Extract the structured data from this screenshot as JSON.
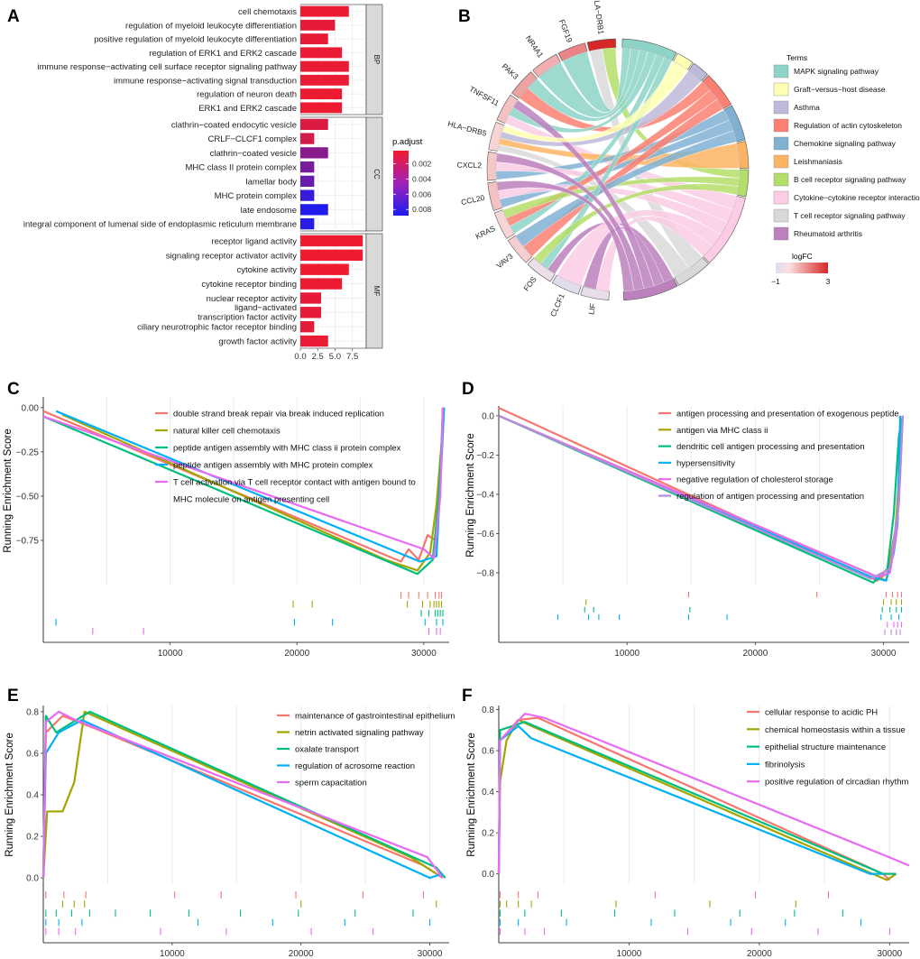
{
  "figure": {
    "panel_letters": [
      "A",
      "B",
      "C",
      "D",
      "E",
      "F"
    ],
    "colors": {
      "bar_low_p": "#f21b2d",
      "bar_high_p": "#1c1cf2",
      "strip_bg": "#d9d9d9",
      "grid": "#ebebeb",
      "gsea_red": "#f8766d",
      "gsea_olive": "#a3a500",
      "gsea_green": "#00bf7d",
      "gsea_blue": "#00b0f6",
      "gsea_pink": "#e76bf3"
    }
  },
  "chart_data": [
    {
      "panel": "A",
      "type": "bar",
      "orientation": "horizontal",
      "xlim": [
        0,
        9.5
      ],
      "xticks": [
        "0.0",
        "2.5",
        "5.0",
        "7.5"
      ],
      "xtick_values": [
        0,
        2.5,
        5,
        7.5
      ],
      "colorbar": {
        "title": "p.adjust",
        "ticks": [
          "0.002",
          "0.004",
          "0.006",
          "0.008"
        ],
        "tick_values": [
          0.002,
          0.004,
          0.006,
          0.008
        ],
        "range": [
          0.0003,
          0.0088
        ]
      },
      "facets": [
        {
          "strip": "BP",
          "categories": [
            "cell chemotaxis",
            "regulation of myeloid leukocyte differentiation",
            "positive regulation of myeloid leukocyte differentiation",
            "regulation of ERK1 and ERK2 cascade",
            "immune response−activating cell surface receptor signaling pathway",
            "immune response−activating signal transduction",
            "regulation of neuron death",
            "ERK1 and ERK2 cascade"
          ],
          "values": [
            7,
            5,
            4,
            6,
            7,
            7,
            6,
            6
          ],
          "p_adjust": [
            0.0005,
            0.0008,
            0.0007,
            0.0006,
            0.0006,
            0.0006,
            0.0005,
            0.0005
          ]
        },
        {
          "strip": "CC",
          "categories": [
            "clathrin−coated endocytic vesicle",
            "CRLF−CLCF1 complex",
            "clathrin−coated vesicle",
            "MHC class II protein complex",
            "lamellar body",
            "MHC protein complex",
            "late endosome",
            "integral component of lumenal side of endoplasmic reticulum membrane"
          ],
          "values": [
            4,
            2,
            4,
            2,
            2,
            2,
            4,
            2
          ],
          "p_adjust": [
            0.0012,
            0.0015,
            0.0045,
            0.0052,
            0.0058,
            0.0078,
            0.0086,
            0.0083
          ]
        },
        {
          "strip": "MF",
          "categories": [
            "receptor ligand activity",
            "signaling receptor activator activity",
            "cytokine activity",
            "cytokine receptor binding",
            "nuclear receptor activity",
            "ligand−activated transcription factor activity",
            "ciliary neurotrophic factor receptor binding",
            "growth factor activity"
          ],
          "values": [
            9,
            9,
            7,
            6,
            3,
            3,
            2,
            4
          ],
          "p_adjust": [
            0.0004,
            0.0004,
            0.0004,
            0.0005,
            0.0008,
            0.0008,
            0.0009,
            0.0006
          ]
        }
      ]
    },
    {
      "panel": "B",
      "type": "chord",
      "genes": [
        "LA−DRB1",
        "FGF19",
        "NR4A1",
        "PAK3",
        "TNFSF11",
        "HLA−DRB5",
        "CXCL2",
        "CCL20",
        "KRAS",
        "VAV3",
        "FOS",
        "CLCF1",
        "LIF"
      ],
      "logFC": [
        3,
        1.5,
        0.8,
        1.0,
        0.5,
        0.2,
        0.4,
        0.5,
        0.2,
        0.3,
        -0.5,
        -0.8,
        -0.6
      ],
      "terms_title": "Terms",
      "terms": [
        "MAPK signaling pathway",
        "Graft−versus−host disease",
        "Asthma",
        "Regulation of actin cytoskeleton",
        "Chemokine signaling pathway",
        "Leishmaniasis",
        "B cell receptor signaling pathway",
        "Cytokine−cytokine receptor interaction",
        "T cell receptor signaling pathway",
        "Rheumatoid arthritis"
      ],
      "term_colors": [
        "#8dd3c7",
        "#ffffb3",
        "#bebada",
        "#fb8072",
        "#80b1d3",
        "#fdb462",
        "#b3de69",
        "#fccde5",
        "#d9d9d9",
        "#bc80bd"
      ],
      "term_sizes": [
        6,
        2,
        2,
        4,
        4,
        3,
        3,
        8,
        4,
        6
      ],
      "logFC_legend": {
        "title": "logFC",
        "ticks": [
          "−1",
          "3"
        ],
        "range": [
          -1,
          3
        ]
      }
    },
    {
      "panel": "C",
      "type": "line",
      "ylabel": "Running Enrichment Score",
      "xlim": [
        0,
        32000
      ],
      "ylim": [
        -1.0,
        0.06
      ],
      "xticks": [
        "10000",
        "20000",
        "30000"
      ],
      "xtick_values": [
        10000,
        20000,
        30000
      ],
      "yticks": [
        "0.00",
        "−0.25",
        "−0.50",
        "−0.75"
      ],
      "ytick_values": [
        0,
        -0.25,
        -0.5,
        -0.75
      ],
      "series": [
        {
          "name": "double strand break repair via break induced replication",
          "color": "#f8766d",
          "x": [
            0,
            28200,
            28800,
            29600,
            30300,
            30900,
            31300,
            31500
          ],
          "y": [
            -0.02,
            -0.87,
            -0.8,
            -0.86,
            -0.72,
            -0.75,
            -0.4,
            0.0
          ],
          "hits": [
            28200,
            28800,
            29600,
            30300,
            30900,
            31200,
            31400
          ]
        },
        {
          "name": "natural killer cell chemotaxis",
          "color": "#a3a500",
          "x": [
            1500,
            27000,
            29500,
            30500,
            31000,
            31400,
            31500
          ],
          "y": [
            -0.04,
            -0.86,
            -0.92,
            -0.82,
            -0.55,
            -0.2,
            0.0
          ],
          "hits": [
            19700,
            21200,
            28700,
            29900,
            30500,
            30800,
            31000,
            31200,
            31400
          ]
        },
        {
          "name": "peptide antigen assembly with MHC class ii protein complex",
          "color": "#00bf7d",
          "x": [
            0,
            29500,
            30700,
            31200,
            31400,
            31600
          ],
          "y": [
            -0.05,
            -0.94,
            -0.86,
            -0.5,
            -0.2,
            0.0
          ],
          "hits": [
            29800,
            30400,
            30900,
            31100,
            31300,
            31500
          ]
        },
        {
          "name": "peptide antigen assembly with MHC protein complex",
          "color": "#00b0f6",
          "x": [
            1000,
            29700,
            31000,
            31400,
            31600
          ],
          "y": [
            -0.02,
            -0.87,
            -0.84,
            -0.3,
            0.0
          ],
          "hits": [
            1000,
            19800,
            22800,
            30100,
            31000,
            31500
          ]
        },
        {
          "name": "T cell activation via T cell receptor contact with antigen bound to MHC molecule on antigen presenting cell",
          "color": "#e76bf3",
          "x": [
            0,
            30000,
            30800,
            31300,
            31500
          ],
          "y": [
            -0.05,
            -0.8,
            -0.85,
            -0.5,
            0.0
          ],
          "hits": [
            3900,
            7900,
            30400,
            31000,
            31300
          ]
        }
      ]
    },
    {
      "panel": "D",
      "type": "line",
      "ylabel": "Running Enrichment Score",
      "xlim": [
        0,
        32000
      ],
      "ylim": [
        -0.86,
        0.05
      ],
      "xticks": [
        "10000",
        "20000",
        "30000"
      ],
      "xtick_values": [
        10000,
        20000,
        30000
      ],
      "yticks": [
        "0.0",
        "−0.2",
        "−0.4",
        "−0.6",
        "−0.8"
      ],
      "ytick_values": [
        0,
        -0.2,
        -0.4,
        -0.6,
        -0.8
      ],
      "series": [
        {
          "name": "antigen processing and presentation of exogenous peptide",
          "color": "#f8766d",
          "x": [
            0,
            29500,
            30300,
            31000,
            31300,
            31500
          ],
          "y": [
            0.04,
            -0.84,
            -0.8,
            -0.55,
            -0.2,
            0.0
          ],
          "hits": [
            14800,
            24800,
            30200,
            30700,
            31100,
            31400
          ]
        },
        {
          "name": "antigen via MHC class ii",
          "color": "#a3a500",
          "x": [
            0,
            28800,
            30200,
            30900,
            31300,
            31500
          ],
          "y": [
            0.0,
            -0.8,
            -0.84,
            -0.6,
            -0.25,
            0.0
          ],
          "hits": [
            6800,
            30000,
            30600,
            31000,
            31400
          ]
        },
        {
          "name": "dendritic cell antigen processing and presentation",
          "color": "#00bf7d",
          "x": [
            0,
            29200,
            30300,
            30800,
            31200,
            31500
          ],
          "y": [
            0.0,
            -0.85,
            -0.78,
            -0.5,
            -0.1,
            0.0
          ],
          "hits": [
            6700,
            7400,
            14900,
            29900,
            30500,
            31000,
            31400
          ]
        },
        {
          "name": "hypersensitivity",
          "color": "#00b0f6",
          "x": [
            0,
            29000,
            30200,
            30800,
            31100,
            31300
          ],
          "y": [
            0.0,
            -0.82,
            -0.84,
            -0.7,
            -0.55,
            0.0
          ],
          "hits": [
            4600,
            7000,
            7800,
            9400,
            14800,
            17800,
            29800,
            30600,
            31200
          ]
        },
        {
          "name": "negative regulation of cholesterol storage",
          "color": "#e76bf3",
          "x": [
            0,
            29500,
            30500,
            31000,
            31300,
            31500
          ],
          "y": [
            0.0,
            -0.82,
            -0.8,
            -0.6,
            -0.3,
            0.0
          ],
          "hits": [
            30300,
            30800,
            31100,
            31400
          ]
        },
        {
          "name": "regulation of antigen processing and presentation",
          "color": "#b58cd9",
          "x": [
            0,
            29000,
            30500,
            31200,
            31500
          ],
          "y": [
            0.0,
            -0.83,
            -0.78,
            -0.45,
            0.0
          ],
          "hits": [
            30100,
            30600,
            31000,
            31300
          ]
        }
      ]
    },
    {
      "panel": "E",
      "type": "line",
      "ylabel": "Running Enrichment Score",
      "xlim": [
        0,
        31500
      ],
      "ylim": [
        -0.03,
        0.83
      ],
      "xticks": [
        "10000",
        "20000",
        "30000"
      ],
      "xtick_values": [
        10000,
        20000,
        30000
      ],
      "yticks": [
        "0.0",
        "0.2",
        "0.4",
        "0.6",
        "0.8"
      ],
      "ytick_values": [
        0,
        0.2,
        0.4,
        0.6,
        0.8
      ],
      "series": [
        {
          "name": "maintenance of gastrointestinal epithelium",
          "color": "#f8766d",
          "x": [
            0,
            200,
            1500,
            4000,
            29500,
            31000
          ],
          "y": [
            0.0,
            0.7,
            0.78,
            0.72,
            0.06,
            0.0
          ],
          "hits": [
            200,
            1600,
            3300,
            10200,
            13800,
            19600,
            24800,
            29500
          ]
        },
        {
          "name": "netrin activated signaling pathway",
          "color": "#a3a500",
          "x": [
            0,
            300,
            1500,
            2400,
            3200,
            28500,
            30500
          ],
          "y": [
            0.0,
            0.32,
            0.32,
            0.46,
            0.8,
            0.1,
            0.02
          ],
          "hits": [
            1500,
            2400,
            3200,
            20000,
            30500
          ]
        },
        {
          "name": "oxalate transport",
          "color": "#00bf7d",
          "x": [
            0,
            200,
            1000,
            3600,
            30500,
            31200
          ],
          "y": [
            0.0,
            0.78,
            0.7,
            0.8,
            0.05,
            0.0
          ],
          "hits": [
            200,
            1000,
            2200,
            3600,
            5600,
            8300,
            11300,
            15300,
            19800,
            24200,
            28700
          ]
        },
        {
          "name": "regulation of acrosome reaction",
          "color": "#00b0f6",
          "x": [
            0,
            200,
            1200,
            3000,
            30000,
            31000
          ],
          "y": [
            0.0,
            0.6,
            0.7,
            0.76,
            0.0,
            0.02
          ],
          "hits": [
            200,
            1200,
            3000,
            12000,
            17800,
            23400,
            30000
          ]
        },
        {
          "name": "sperm capacitation",
          "color": "#e76bf3",
          "x": [
            0,
            200,
            1200,
            2500,
            29800,
            31000
          ],
          "y": [
            0.0,
            0.75,
            0.8,
            0.76,
            0.1,
            0.0
          ],
          "hits": [
            200,
            1200,
            2500,
            9100,
            14200,
            20800,
            25600
          ]
        }
      ]
    },
    {
      "panel": "F",
      "type": "line",
      "ylabel": "Running Enrichment Score",
      "xlim": [
        0,
        31500
      ],
      "ylim": [
        -0.05,
        0.82
      ],
      "xticks": [
        "10000",
        "20000",
        "30000"
      ],
      "xtick_values": [
        10000,
        20000,
        30000
      ],
      "yticks": [
        "0.0",
        "0.2",
        "0.4",
        "0.6",
        "0.8"
      ],
      "ytick_values": [
        0,
        0.2,
        0.4,
        0.6,
        0.8
      ],
      "series": [
        {
          "name": "cellular response to acidic PH",
          "color": "#f8766d",
          "x": [
            0,
            100,
            1500,
            3000,
            29500,
            30000
          ],
          "y": [
            0.0,
            0.65,
            0.75,
            0.76,
            0.0,
            -0.03
          ],
          "hits": [
            100,
            1500,
            3000,
            12000,
            19700,
            25300
          ]
        },
        {
          "name": "chemical homeostasis within a tissue",
          "color": "#a3a500",
          "x": [
            0,
            100,
            600,
            1500,
            2500,
            29800,
            30500
          ],
          "y": [
            0.0,
            0.45,
            0.65,
            0.75,
            0.72,
            -0.03,
            0.0
          ],
          "hits": [
            100,
            600,
            1500,
            2500,
            9000,
            16200,
            22800
          ]
        },
        {
          "name": "epithelial structure maintenance",
          "color": "#00bf7d",
          "x": [
            0,
            100,
            2000,
            29500,
            30500
          ],
          "y": [
            0.0,
            0.7,
            0.74,
            0.0,
            0.0
          ],
          "hits": [
            100,
            2000,
            4800,
            8900,
            13500,
            18500,
            22700,
            26400
          ]
        },
        {
          "name": "fibrinolysis",
          "color": "#00b0f6",
          "x": [
            0,
            100,
            1500,
            2500,
            28500,
            29500
          ],
          "y": [
            0.0,
            0.65,
            0.72,
            0.66,
            0.0,
            0.0
          ],
          "hits": [
            100,
            1500,
            5200,
            11700,
            17800,
            22000,
            27800
          ]
        },
        {
          "name": "positive regulation of circadian rhythm",
          "color": "#e76bf3",
          "x": [
            0,
            100,
            2000,
            3500,
            30000,
            31500
          ],
          "y": [
            0.0,
            0.65,
            0.78,
            0.76,
            0.08,
            0.04
          ],
          "hits": [
            100,
            2000,
            3500,
            14500,
            19400,
            24500,
            30000
          ]
        }
      ]
    }
  ]
}
